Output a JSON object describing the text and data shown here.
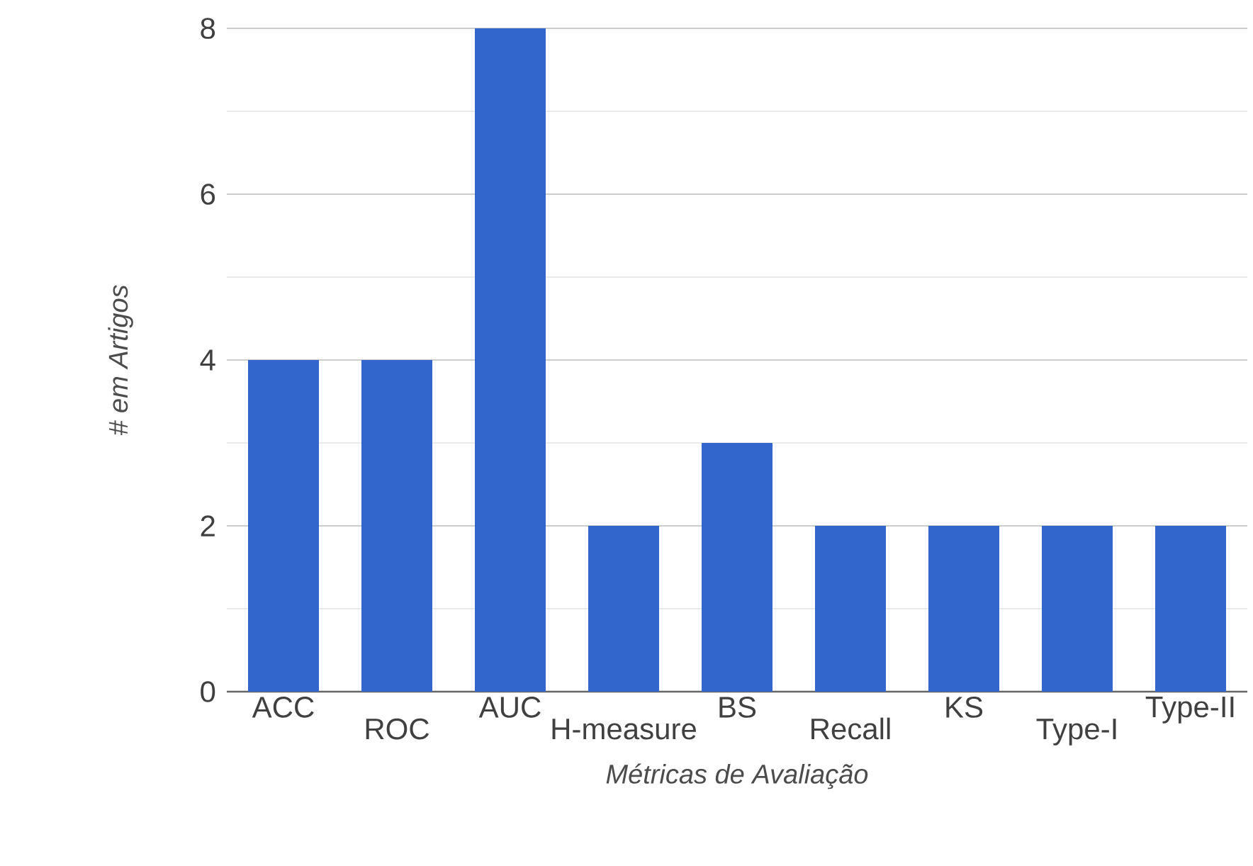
{
  "chart_data": {
    "type": "bar",
    "xlabel": "Métricas de Avaliação",
    "ylabel": "# em Artigos",
    "categories": [
      "ACC",
      "ROC",
      "AUC",
      "H-measure",
      "BS",
      "Recall",
      "KS",
      "Type-I",
      "Type-II"
    ],
    "values": [
      4,
      4,
      8,
      2,
      3,
      2,
      2,
      2,
      2
    ],
    "color": "#3366cc",
    "ylim": [
      0,
      8
    ],
    "yticks": [
      0,
      {
        "value": 1,
        "label": null
      },
      2,
      {
        "value": 3,
        "label": null
      },
      4,
      {
        "value": 5,
        "label": null
      },
      6,
      {
        "value": 7,
        "label": null
      },
      8
    ],
    "grid": "y"
  }
}
